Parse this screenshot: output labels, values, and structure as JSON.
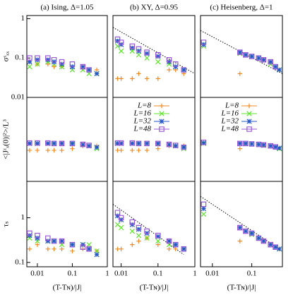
{
  "chart_data": [
    {
      "type": "scatter",
      "title": "(a) Ising, Δ=1.05",
      "ylabel": "σˢₓₓ",
      "xlim": [
        0.005,
        1
      ],
      "ylim": [
        0.01,
        1.2
      ],
      "yticks": [
        0.01,
        0.1,
        1
      ],
      "x": [
        0.006,
        0.01,
        0.02,
        0.03,
        0.05,
        0.1,
        0.2,
        0.3,
        0.5
      ],
      "series": [
        {
          "name": "L=8",
          "color": "#f08a24",
          "marker": "plus",
          "values": [
            0.08,
            0.07,
            0.07,
            0.06,
            0.06,
            0.06,
            0.06,
            0.05,
            0.05
          ]
        },
        {
          "name": "L=16",
          "color": "#5ee62b",
          "marker": "x",
          "values": [
            0.06,
            0.07,
            0.08,
            0.07,
            0.06,
            0.05,
            0.05,
            0.04,
            0.04
          ]
        },
        {
          "name": "L=32",
          "color": "#2456c8",
          "marker": "star",
          "values": [
            0.08,
            0.09,
            0.09,
            0.08,
            0.07,
            0.06,
            0.06,
            0.05,
            0.04
          ]
        },
        {
          "name": "L=48",
          "color": "#9a5ad8",
          "marker": "square",
          "values": [
            0.1,
            0.1,
            0.1,
            0.09,
            0.08,
            0.07,
            0.06,
            0.05,
            null
          ]
        }
      ]
    },
    {
      "type": "scatter",
      "title": "(b) XY, Δ=0.95",
      "xlim": [
        0.006,
        1
      ],
      "ylim": [
        0.01,
        1.2
      ],
      "x": [
        0.008,
        0.01,
        0.02,
        0.03,
        0.05,
        0.1,
        0.2,
        0.3,
        0.5
      ],
      "guide": {
        "x": [
          0.006,
          1
        ],
        "y": [
          0.6,
          0.04
        ]
      },
      "series": [
        {
          "name": "L=8",
          "color": "#f08a24",
          "marker": "plus",
          "values": [
            0.03,
            0.03,
            0.03,
            0.04,
            0.03,
            0.03,
            0.05,
            0.05,
            0.04
          ]
        },
        {
          "name": "L=16",
          "color": "#5ee62b",
          "marker": "x",
          "values": [
            0.2,
            0.15,
            0.15,
            0.12,
            0.1,
            0.08,
            0.07,
            0.06,
            0.05
          ]
        },
        {
          "name": "L=32",
          "color": "#2456c8",
          "marker": "star",
          "values": [
            0.27,
            0.22,
            0.18,
            0.15,
            0.13,
            0.11,
            0.08,
            0.06,
            0.05
          ]
        },
        {
          "name": "L=48",
          "color": "#9a5ad8",
          "marker": "square",
          "values": [
            0.3,
            0.25,
            0.2,
            0.17,
            0.14,
            0.12,
            0.09,
            0.07,
            0.05
          ]
        }
      ]
    },
    {
      "type": "scatter",
      "title": "(c) Heisenberg, Δ=1",
      "xlim": [
        0.005,
        0.6
      ],
      "ylim": [
        0.01,
        1.2
      ],
      "x": [
        0.006,
        0.05,
        0.07,
        0.1,
        0.15,
        0.2,
        0.3,
        0.4,
        0.5
      ],
      "guide": {
        "x": [
          0.005,
          0.6
        ],
        "y": [
          0.5,
          0.04
        ]
      },
      "series": [
        {
          "name": "L=8",
          "color": "#f08a24",
          "marker": "plus",
          "values": [
            null,
            0.04,
            null,
            null,
            null,
            null,
            null,
            null,
            null
          ]
        },
        {
          "name": "L=16",
          "color": "#5ee62b",
          "marker": "x",
          "values": [
            0.2,
            0.13,
            0.12,
            0.11,
            0.1,
            0.09,
            0.07,
            0.06,
            0.05
          ]
        },
        {
          "name": "L=32",
          "color": "#2456c8",
          "marker": "star",
          "values": [
            0.22,
            0.14,
            0.12,
            0.11,
            0.1,
            0.09,
            0.08,
            0.06,
            0.05
          ]
        },
        {
          "name": "L=48",
          "color": "#9a5ad8",
          "marker": "square",
          "values": [
            0.25,
            0.14,
            0.12,
            0.11,
            0.1,
            0.09,
            0.08,
            0.06,
            null
          ]
        }
      ]
    },
    {
      "type": "scatter",
      "ylabel": "<|Jᶻₓ(0)|²>/L³",
      "xlim": [
        0.005,
        1
      ],
      "ylim": [
        0.1,
        10
      ],
      "x": [
        0.006,
        0.01,
        0.02,
        0.03,
        0.05,
        0.1,
        0.2,
        0.3,
        0.5
      ],
      "series": [
        {
          "name": "L=8",
          "color": "#f08a24",
          "marker": "plus",
          "values": [
            0.55,
            0.55,
            0.55,
            0.55,
            0.55,
            0.6,
            0.7,
            0.7,
            0.7
          ]
        },
        {
          "name": "L=16",
          "color": "#5ee62b",
          "marker": "x",
          "values": [
            0.8,
            0.8,
            0.8,
            0.8,
            0.8,
            0.78,
            0.75,
            0.7,
            0.6
          ]
        },
        {
          "name": "L=32",
          "color": "#2456c8",
          "marker": "star",
          "values": [
            0.8,
            0.8,
            0.8,
            0.8,
            0.8,
            0.8,
            0.75,
            0.7,
            0.65
          ]
        },
        {
          "name": "L=48",
          "color": "#9a5ad8",
          "marker": "square",
          "values": [
            0.82,
            0.82,
            0.82,
            0.8,
            0.8,
            0.8,
            0.76,
            0.72,
            null
          ]
        }
      ]
    },
    {
      "type": "scatter",
      "legend": true,
      "xlim": [
        0.006,
        1
      ],
      "ylim": [
        0.1,
        10
      ],
      "x": [
        0.008,
        0.01,
        0.02,
        0.03,
        0.05,
        0.1,
        0.2,
        0.3,
        0.5
      ],
      "series": [
        {
          "name": "L=8",
          "color": "#f08a24",
          "marker": "plus",
          "values": [
            0.55,
            0.55,
            0.55,
            0.55,
            0.55,
            0.6,
            0.7,
            0.7,
            0.7
          ]
        },
        {
          "name": "L=16",
          "color": "#5ee62b",
          "marker": "x",
          "values": [
            0.8,
            0.8,
            0.8,
            0.8,
            0.8,
            0.78,
            0.75,
            0.7,
            0.6
          ]
        },
        {
          "name": "L=32",
          "color": "#2456c8",
          "marker": "star",
          "values": [
            0.8,
            0.8,
            0.8,
            0.8,
            0.8,
            0.8,
            0.75,
            0.7,
            0.65
          ]
        },
        {
          "name": "L=48",
          "color": "#9a5ad8",
          "marker": "square",
          "values": [
            0.82,
            0.82,
            0.82,
            0.8,
            0.8,
            0.8,
            0.76,
            0.72,
            0.65
          ]
        }
      ]
    },
    {
      "type": "scatter",
      "legend": true,
      "xlim": [
        0.005,
        0.6
      ],
      "ylim": [
        0.1,
        10
      ],
      "x": [
        0.006,
        0.05,
        0.07,
        0.1,
        0.15,
        0.2,
        0.3,
        0.4,
        0.5
      ],
      "series": [
        {
          "name": "L=8",
          "color": "#f08a24",
          "marker": "plus",
          "values": [
            null,
            0.6,
            null,
            null,
            null,
            null,
            null,
            null,
            null
          ]
        },
        {
          "name": "L=16",
          "color": "#5ee62b",
          "marker": "x",
          "values": [
            0.8,
            0.8,
            0.78,
            0.78,
            0.75,
            0.72,
            0.7,
            0.65,
            0.6
          ]
        },
        {
          "name": "L=32",
          "color": "#2456c8",
          "marker": "star",
          "values": [
            0.82,
            0.8,
            0.8,
            0.78,
            0.76,
            0.74,
            0.7,
            0.66,
            0.62
          ]
        },
        {
          "name": "L=48",
          "color": "#9a5ad8",
          "marker": "square",
          "values": [
            0.85,
            0.8,
            0.8,
            0.78,
            0.76,
            0.74,
            0.7,
            0.66,
            null
          ]
        }
      ]
    },
    {
      "type": "scatter",
      "ylabel": "τₛ",
      "xlabel": "(T-Tɴ)/|J|",
      "xlim": [
        0.005,
        1
      ],
      "ylim": [
        0.08,
        6.5
      ],
      "xticks": [
        0.01,
        0.1,
        1
      ],
      "yticks": [
        0.1,
        1
      ],
      "x": [
        0.006,
        0.01,
        0.02,
        0.03,
        0.05,
        0.1,
        0.2,
        0.3,
        0.5
      ],
      "series": [
        {
          "name": "L=8",
          "color": "#f08a24",
          "marker": "plus",
          "values": [
            0.2,
            0.25,
            0.2,
            0.2,
            0.2,
            0.18,
            0.2,
            0.2,
            0.18
          ]
        },
        {
          "name": "L=16",
          "color": "#5ee62b",
          "marker": "x",
          "values": [
            0.35,
            0.3,
            0.3,
            0.3,
            0.25,
            0.25,
            0.25,
            0.25,
            0.18
          ]
        },
        {
          "name": "L=32",
          "color": "#2456c8",
          "marker": "star",
          "values": [
            0.4,
            0.35,
            0.3,
            0.3,
            0.3,
            0.25,
            0.25,
            0.2,
            0.15
          ]
        },
        {
          "name": "L=48",
          "color": "#9a5ad8",
          "marker": "square",
          "values": [
            0.45,
            0.4,
            0.35,
            0.3,
            0.3,
            0.25,
            0.22,
            0.2,
            null
          ]
        }
      ]
    },
    {
      "type": "scatter",
      "xlabel": "(T-Tɴ)/|J|",
      "xlim": [
        0.006,
        1
      ],
      "ylim": [
        0.08,
        6.5
      ],
      "xticks": [
        0.01,
        0.1,
        1
      ],
      "x": [
        0.008,
        0.01,
        0.02,
        0.03,
        0.05,
        0.1,
        0.2,
        0.3,
        0.5
      ],
      "guide": {
        "x": [
          0.006,
          0.5
        ],
        "y": [
          2,
          0.15
        ]
      },
      "series": [
        {
          "name": "L=8",
          "color": "#f08a24",
          "marker": "plus",
          "values": [
            0.2,
            0.2,
            0.25,
            0.3,
            0.35,
            0.25,
            0.2,
            0.2,
            0.2
          ]
        },
        {
          "name": "L=16",
          "color": "#5ee62b",
          "marker": "x",
          "values": [
            0.7,
            0.6,
            0.5,
            0.4,
            0.35,
            0.3,
            0.25,
            0.25,
            0.2
          ]
        },
        {
          "name": "L=32",
          "color": "#2456c8",
          "marker": "star",
          "values": [
            1.1,
            0.9,
            0.7,
            0.55,
            0.45,
            0.38,
            0.3,
            0.25,
            0.2
          ]
        },
        {
          "name": "L=48",
          "color": "#9a5ad8",
          "marker": "square",
          "values": [
            1.3,
            1.0,
            0.8,
            0.6,
            0.5,
            0.4,
            0.3,
            0.25,
            0.2
          ]
        }
      ]
    },
    {
      "type": "scatter",
      "xlabel": "(T-Tɴ)/|J|",
      "xlim": [
        0.005,
        0.6
      ],
      "ylim": [
        0.08,
        6.5
      ],
      "xticks": [
        0.01,
        0.1
      ],
      "x": [
        0.006,
        0.05,
        0.07,
        0.1,
        0.15,
        0.2,
        0.3,
        0.4,
        0.5
      ],
      "guide": {
        "x": [
          0.005,
          0.5
        ],
        "y": [
          3,
          0.2
        ]
      },
      "series": [
        {
          "name": "L=8",
          "color": "#f08a24",
          "marker": "plus",
          "values": [
            null,
            0.3,
            null,
            null,
            null,
            null,
            null,
            null,
            null
          ]
        },
        {
          "name": "L=16",
          "color": "#5ee62b",
          "marker": "x",
          "values": [
            1.2,
            0.6,
            0.5,
            0.42,
            0.35,
            0.3,
            0.25,
            0.22,
            0.2
          ]
        },
        {
          "name": "L=32",
          "color": "#2456c8",
          "marker": "star",
          "values": [
            1.6,
            0.6,
            0.5,
            0.45,
            0.35,
            0.3,
            0.25,
            0.22,
            0.2
          ]
        },
        {
          "name": "L=48",
          "color": "#9a5ad8",
          "marker": "square",
          "values": [
            2,
            0.6,
            0.5,
            0.45,
            0.35,
            0.3,
            0.25,
            0.22,
            null
          ]
        }
      ]
    }
  ]
}
